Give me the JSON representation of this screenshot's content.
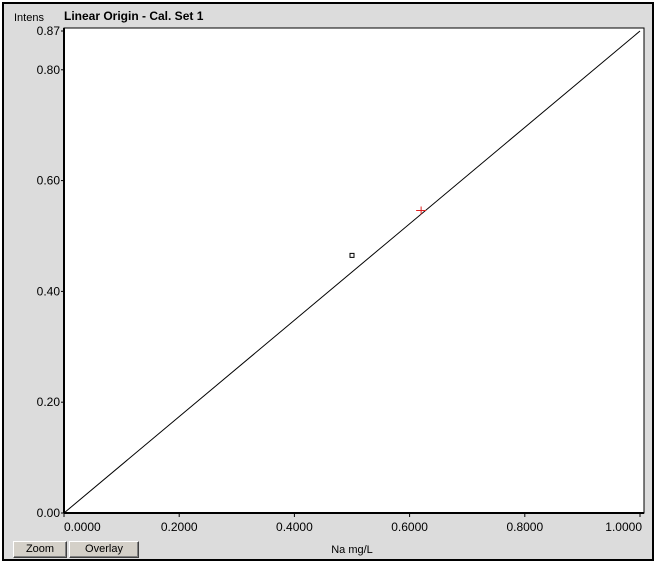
{
  "buttons": {
    "zoom_label": "Zoom",
    "overlay_label": "Overlay"
  },
  "chart_data": {
    "type": "scatter",
    "title": "Linear Origin - Cal. Set 1",
    "ylabel": "Intens",
    "xlabel": "Na mg/L",
    "xlim": [
      0,
      1.0
    ],
    "ylim": [
      0,
      0.87
    ],
    "x_ticks": [
      {
        "value": 0.0,
        "label": "0.0000"
      },
      {
        "value": 0.2,
        "label": "0.2000"
      },
      {
        "value": 0.4,
        "label": "0.4000"
      },
      {
        "value": 0.6,
        "label": "0.6000"
      },
      {
        "value": 0.8,
        "label": "0.8000"
      },
      {
        "value": 1.0,
        "label": "1.0000"
      }
    ],
    "y_ticks": [
      {
        "value": 0.0,
        "label": "0.00"
      },
      {
        "value": 0.2,
        "label": "0.20"
      },
      {
        "value": 0.4,
        "label": "0.40"
      },
      {
        "value": 0.6,
        "label": "0.60"
      },
      {
        "value": 0.8,
        "label": "0.80"
      },
      {
        "value": 0.87,
        "label": "0.87"
      }
    ],
    "fit_line": {
      "x": [
        0.0,
        1.0
      ],
      "y": [
        0.0,
        0.87
      ]
    },
    "series": [
      {
        "marker": "square",
        "color": "#000000",
        "points": [
          {
            "x": 0.5,
            "y": 0.465
          }
        ]
      },
      {
        "marker": "cross",
        "color": "#e02020",
        "points": [
          {
            "x": 0.62,
            "y": 0.546
          }
        ]
      }
    ],
    "grid": false
  }
}
